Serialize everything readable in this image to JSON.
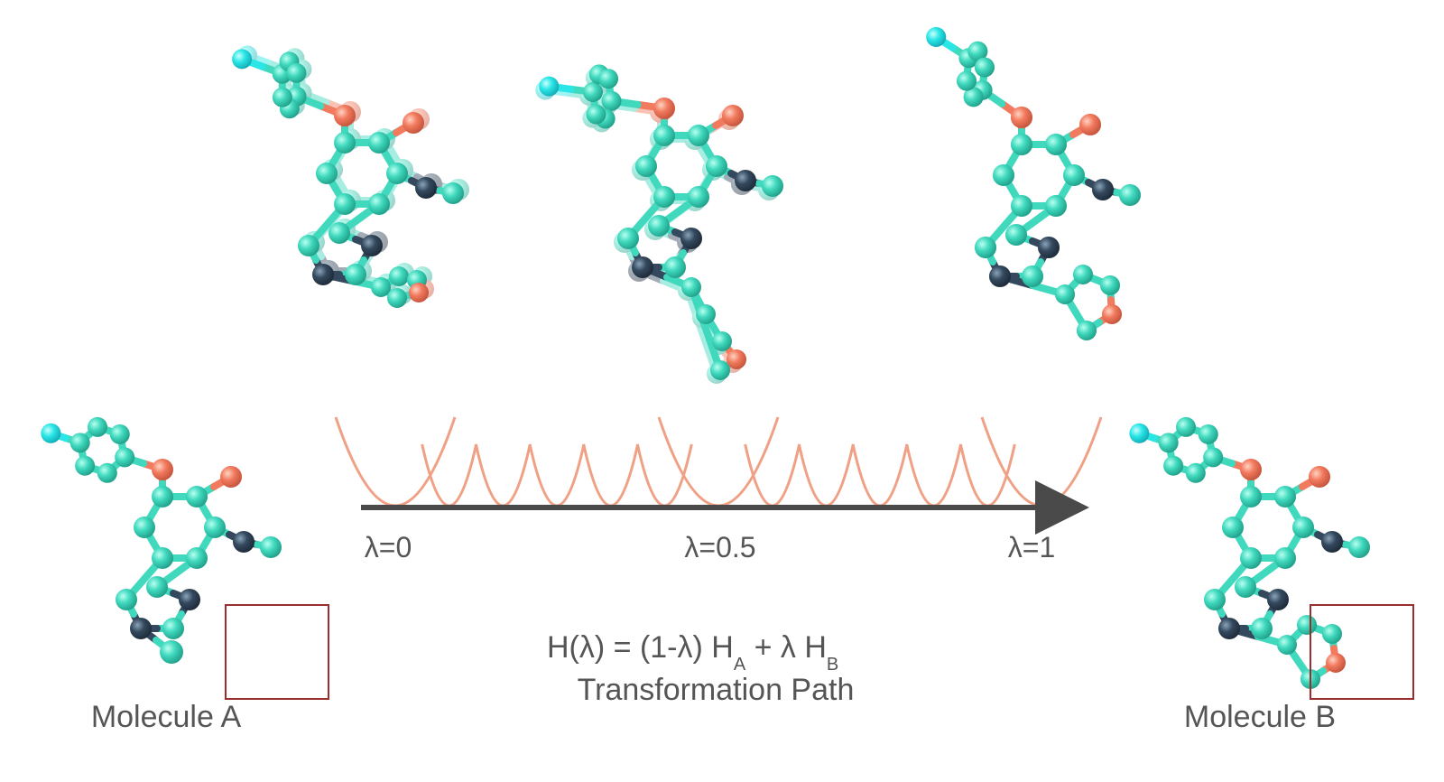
{
  "labels": {
    "molecule_a": "Molecule A",
    "molecule_b": "Molecule B",
    "lambda_start": "λ=0",
    "lambda_mid": "λ=0.5",
    "lambda_end": "λ=1",
    "equation": {
      "prefix": "H(λ) = (1-λ) H",
      "sub_a": "A",
      "middle": " + λ H",
      "sub_b": "B"
    },
    "path_title": "Transformation Path"
  },
  "colors": {
    "carbon": "#40d9be",
    "terminal": "#2ae6e6",
    "nitrogen": "#34495e",
    "oxygen": "#f27a5e",
    "well": "#f0a084",
    "axis": "#4a4a4a",
    "highlight_box": "#9b2d2d",
    "text": "#555555"
  },
  "intermediate_lambdas": [
    0,
    0.5,
    1
  ],
  "window_count": 13
}
